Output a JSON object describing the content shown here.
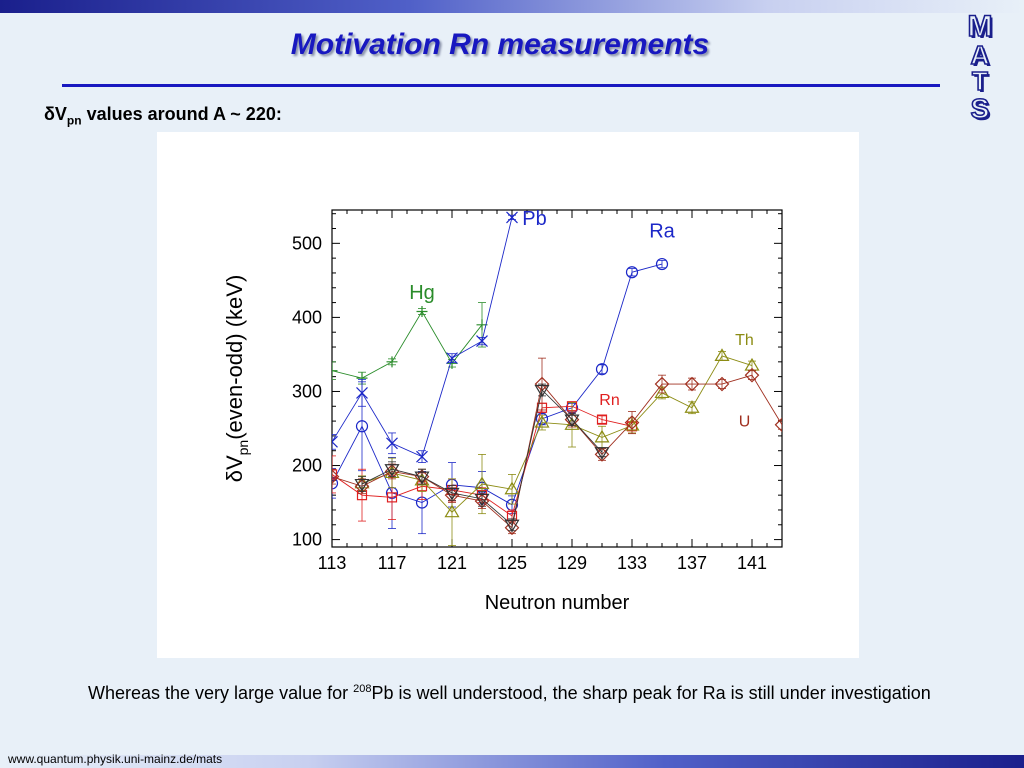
{
  "slide": {
    "title": "Motivation Rn measurements",
    "subtitle_prefix": "δV",
    "subtitle_sub": "pn",
    "subtitle_suffix": " values around A ~ 220:",
    "caption_before": "Whereas the very large value for ",
    "caption_sup": "208",
    "caption_after": "Pb is well understood, the sharp peak for Ra is still under investigation",
    "footer_url": "www.quantum.physik.uni-mainz.de/mats",
    "logo_letters": [
      "M",
      "A",
      "T",
      "S"
    ]
  },
  "chart_data": {
    "type": "line",
    "xlabel": "Neutron number",
    "ylabel_prefix": "δV",
    "ylabel_sub": "pn",
    "ylabel_suffix": "(even-odd) (keV)",
    "xlim": [
      113,
      143
    ],
    "ylim": [
      90,
      545
    ],
    "x_ticks": [
      113,
      117,
      121,
      125,
      129,
      133,
      137,
      141
    ],
    "y_ticks": [
      100,
      200,
      300,
      400,
      500
    ],
    "grid": false,
    "series": [
      {
        "name": "Hg",
        "color": "#2a8c2a",
        "marker": "plus",
        "x": [
          113,
          115,
          117,
          119,
          121,
          123
        ],
        "y": [
          328,
          318,
          340,
          408,
          338,
          390
        ],
        "err": [
          12,
          8,
          4,
          4,
          5,
          30
        ]
      },
      {
        "name": "Pb",
        "color": "#1c28c8",
        "marker": "cross",
        "x": [
          113,
          115,
          117,
          119,
          121,
          123,
          125
        ],
        "y": [
          232,
          298,
          230,
          212,
          345,
          368,
          535
        ],
        "err": [
          10,
          18,
          14,
          8,
          6,
          5,
          3
        ]
      },
      {
        "name": "Ra",
        "color": "#1c28c8",
        "marker": "circle",
        "x": [
          113,
          115,
          117,
          119,
          121,
          123,
          125,
          127,
          129,
          131,
          133,
          135
        ],
        "y": [
          176,
          253,
          163,
          150,
          174,
          170,
          147,
          263,
          278,
          330,
          461,
          472
        ],
        "err": [
          20,
          60,
          48,
          42,
          30,
          22,
          12,
          8,
          6,
          6,
          5,
          5
        ]
      },
      {
        "name": "Rn",
        "color": "#e02020",
        "marker": "square",
        "x": [
          113,
          115,
          117,
          119,
          121,
          123,
          125,
          127,
          129,
          131,
          133
        ],
        "y": [
          188,
          160,
          157,
          172,
          167,
          160,
          132,
          278,
          280,
          262,
          253
        ],
        "err": [
          25,
          35,
          30,
          18,
          15,
          10,
          8,
          6,
          6,
          5,
          5
        ]
      },
      {
        "name": "Th",
        "color": "#8c8c14",
        "marker": "triangle-up",
        "x": [
          115,
          117,
          119,
          121,
          123,
          125,
          127,
          129,
          131,
          133,
          135,
          137,
          139,
          141
        ],
        "y": [
          176,
          190,
          180,
          137,
          175,
          168,
          258,
          255,
          238,
          254,
          298,
          278,
          348,
          335
        ],
        "err": [
          10,
          20,
          15,
          45,
          40,
          20,
          10,
          30,
          15,
          10,
          8,
          8,
          6,
          6
        ]
      },
      {
        "name": "U",
        "color": "#a03020",
        "marker": "diamond",
        "x": [
          113,
          115,
          117,
          119,
          121,
          123,
          125,
          127,
          129,
          131,
          133,
          135,
          137,
          139,
          141,
          143
        ],
        "y": [
          185,
          172,
          192,
          185,
          160,
          152,
          116,
          310,
          262,
          215,
          258,
          310,
          310,
          310,
          322,
          255
        ],
        "err": [
          10,
          10,
          10,
          10,
          10,
          10,
          8,
          35,
          10,
          8,
          15,
          12,
          8,
          6,
          6,
          6
        ]
      },
      {
        "name": "",
        "color": "#333333",
        "marker": "triangle-down",
        "x": [
          115,
          117,
          119,
          121,
          123,
          125,
          127,
          129,
          131
        ],
        "y": [
          175,
          195,
          185,
          163,
          155,
          120,
          302,
          262,
          218
        ],
        "err": [
          10,
          10,
          10,
          10,
          10,
          8,
          8,
          8,
          6
        ]
      }
    ],
    "annotations": [
      {
        "text": "Pb",
        "x": 126.5,
        "y": 525,
        "color": "#1c28c8",
        "size": 20
      },
      {
        "text": "Ra",
        "x": 135.0,
        "y": 508,
        "color": "#1c28c8",
        "size": 20
      },
      {
        "text": "Hg",
        "x": 119.0,
        "y": 425,
        "color": "#2a8c2a",
        "size": 20
      },
      {
        "text": "Th",
        "x": 140.5,
        "y": 363,
        "color": "#8c8c14",
        "size": 16
      },
      {
        "text": "Rn",
        "x": 131.5,
        "y": 282,
        "color": "#e02020",
        "size": 16
      },
      {
        "text": "U",
        "x": 140.5,
        "y": 253,
        "color": "#a03020",
        "size": 16
      }
    ]
  }
}
